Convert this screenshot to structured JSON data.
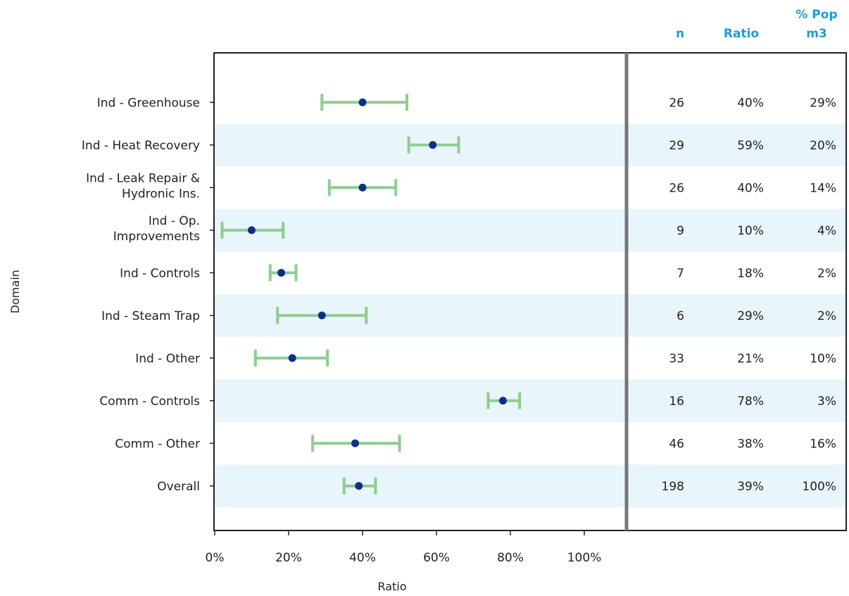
{
  "chart_data": {
    "type": "forest",
    "xlabel": "Ratio",
    "ylabel": "Domain",
    "xlim": [
      0,
      1.1
    ],
    "x_ticks": [
      "0%",
      "20%",
      "40%",
      "60%",
      "80%",
      "100%"
    ],
    "x_tick_values": [
      0,
      0.2,
      0.4,
      0.6,
      0.8,
      1.0
    ],
    "grid": false,
    "colors": {
      "point": "#0d2f8a",
      "interval": "#8fcd8f",
      "band": "#e8f5fb",
      "header_text": "#1e9bd6",
      "separator": "#777777"
    },
    "table_headers": {
      "n": "n",
      "ratio": "Ratio",
      "pop_line1": "% Pop",
      "pop_line2": "m3"
    },
    "rows": [
      {
        "label": [
          "Ind - Greenhouse"
        ],
        "ratio": 0.4,
        "low": 0.29,
        "high": 0.52,
        "n": "26",
        "ratio_text": "40%",
        "pop_text": "29%"
      },
      {
        "label": [
          "Ind - Heat Recovery"
        ],
        "ratio": 0.59,
        "low": 0.525,
        "high": 0.66,
        "n": "29",
        "ratio_text": "59%",
        "pop_text": "20%"
      },
      {
        "label": [
          "Ind - Leak Repair &",
          "Hydronic Ins."
        ],
        "ratio": 0.4,
        "low": 0.31,
        "high": 0.49,
        "n": "26",
        "ratio_text": "40%",
        "pop_text": "14%"
      },
      {
        "label": [
          "Ind - Op.",
          "Improvements"
        ],
        "ratio": 0.1,
        "low": 0.02,
        "high": 0.185,
        "n": "9",
        "ratio_text": "10%",
        "pop_text": "4%"
      },
      {
        "label": [
          "Ind - Controls"
        ],
        "ratio": 0.18,
        "low": 0.15,
        "high": 0.22,
        "n": "7",
        "ratio_text": "18%",
        "pop_text": "2%"
      },
      {
        "label": [
          "Ind - Steam Trap"
        ],
        "ratio": 0.29,
        "low": 0.17,
        "high": 0.41,
        "n": "6",
        "ratio_text": "29%",
        "pop_text": "2%"
      },
      {
        "label": [
          "Ind - Other"
        ],
        "ratio": 0.21,
        "low": 0.11,
        "high": 0.305,
        "n": "33",
        "ratio_text": "21%",
        "pop_text": "10%"
      },
      {
        "label": [
          "Comm - Controls"
        ],
        "ratio": 0.78,
        "low": 0.74,
        "high": 0.825,
        "n": "16",
        "ratio_text": "78%",
        "pop_text": "3%"
      },
      {
        "label": [
          "Comm - Other"
        ],
        "ratio": 0.38,
        "low": 0.265,
        "high": 0.5,
        "n": "46",
        "ratio_text": "38%",
        "pop_text": "16%"
      },
      {
        "label": [
          "Overall"
        ],
        "ratio": 0.39,
        "low": 0.35,
        "high": 0.435,
        "n": "198",
        "ratio_text": "39%",
        "pop_text": "100%"
      }
    ]
  }
}
